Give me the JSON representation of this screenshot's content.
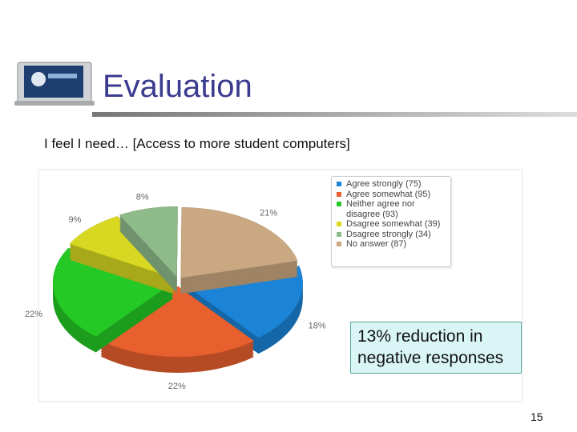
{
  "slide": {
    "title": "Evaluation",
    "subtitle": "I feel I need… [Access to more student computers]",
    "callout": "13% reduction in negative responses",
    "page_number": "15"
  },
  "chart_data": {
    "type": "pie",
    "categories": [
      "Agree strongly (75)",
      "Agree somewhat (95)",
      "Neither agree nor disagree (93)",
      "Dsagree somewhat (39)",
      "Dsagree strongly (34)",
      "No answer (87)"
    ],
    "values": [
      18,
      22,
      22,
      9,
      8,
      21
    ],
    "value_labels": [
      "18%",
      "22%",
      "22%",
      "9%",
      "8%",
      "21%"
    ],
    "colors": [
      "#1b84d6",
      "#e8602e",
      "#25c925",
      "#d8d823",
      "#8fbb8a",
      "#caa882"
    ],
    "legend": "top-right"
  }
}
